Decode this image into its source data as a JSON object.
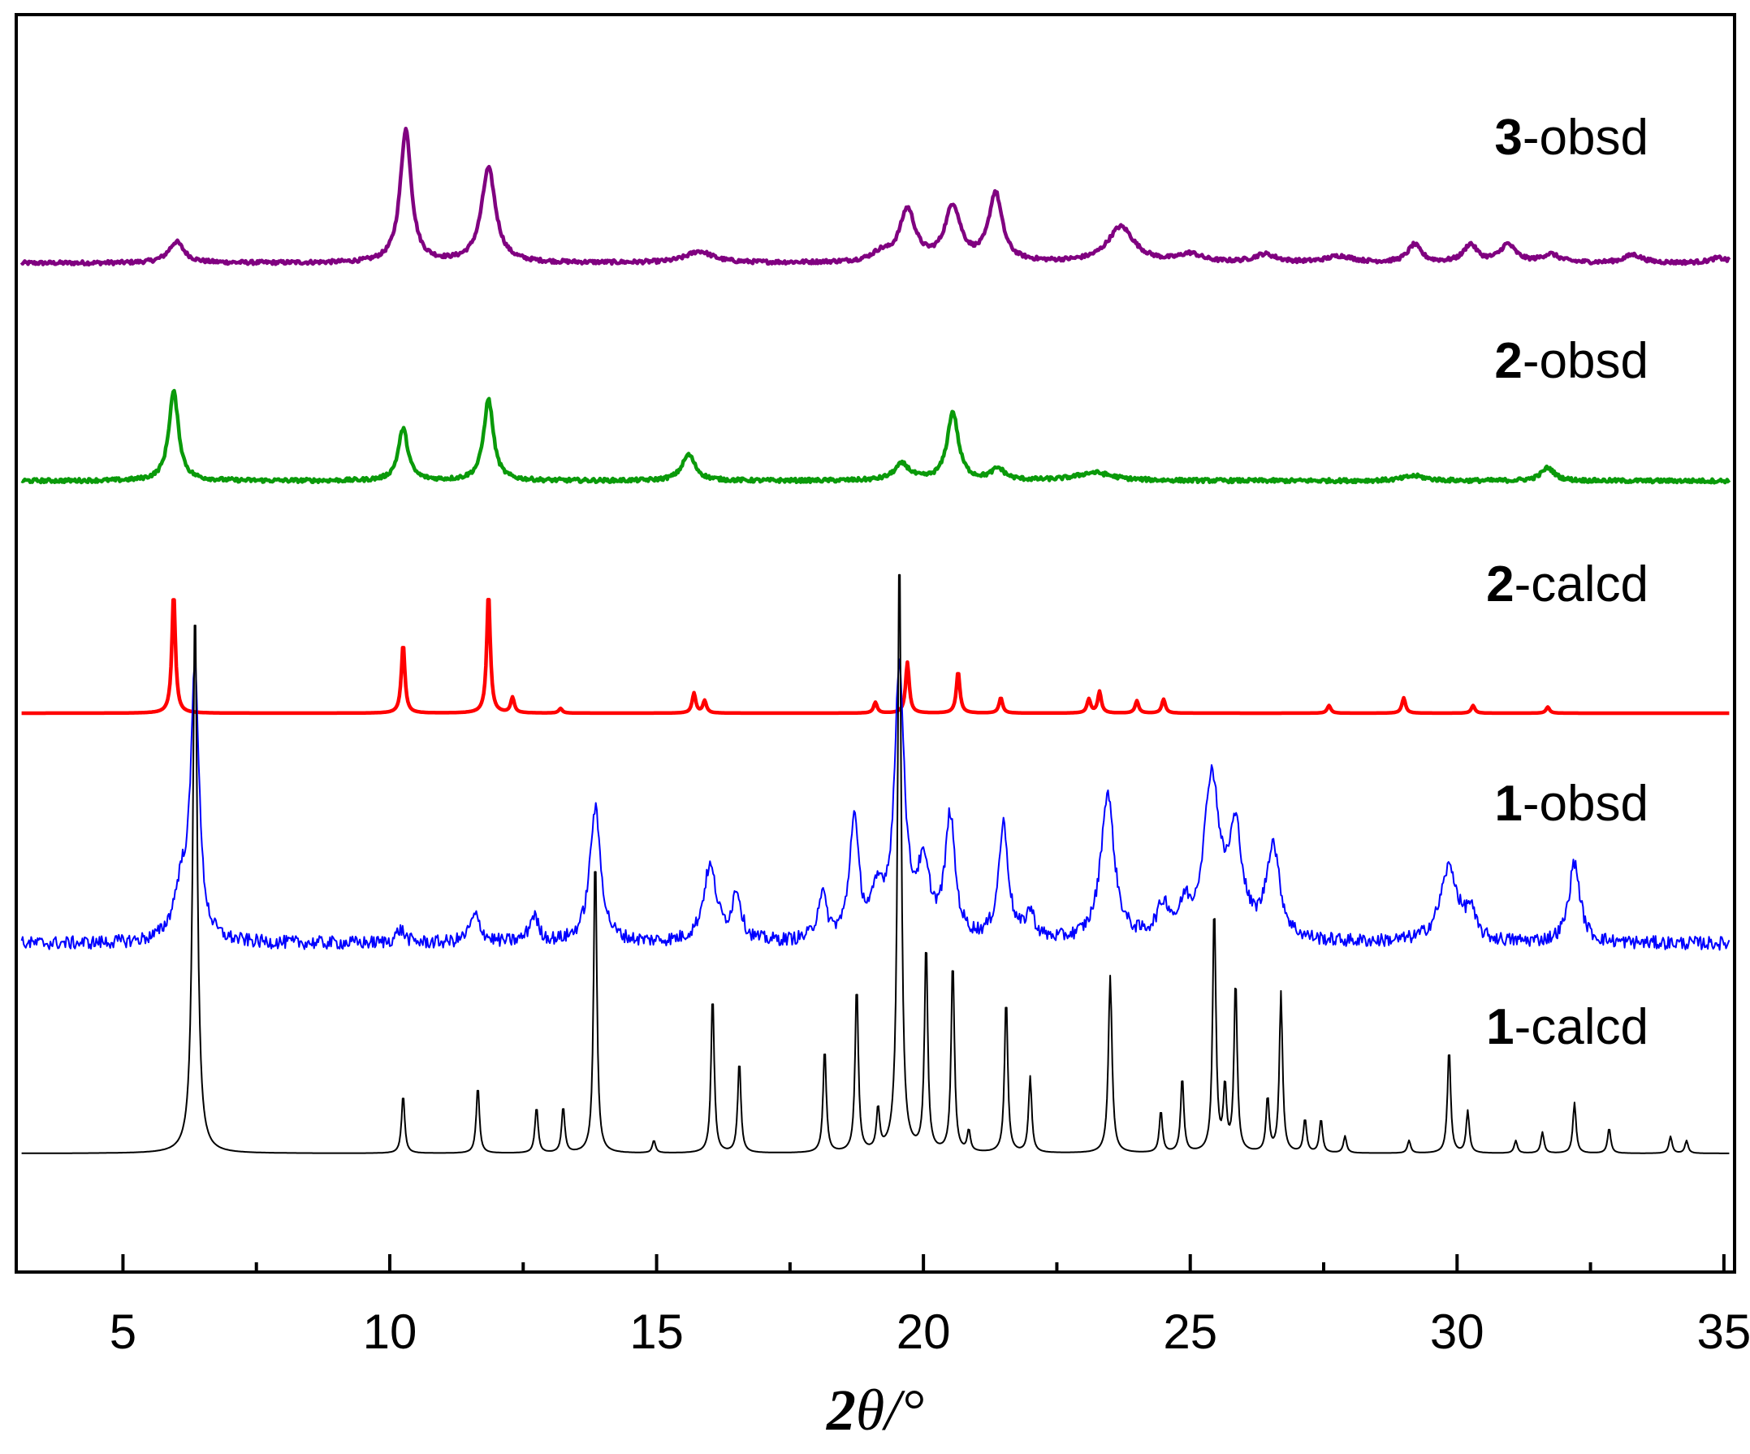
{
  "chart_data": {
    "type": "line",
    "xlabel": "2θ/°",
    "xlabel_parts": {
      "prefix": "2",
      "italic": "θ",
      "suffix": "/°"
    },
    "xlim": [
      3,
      35.2
    ],
    "x_ticks": [
      5,
      10,
      15,
      20,
      25,
      30,
      35
    ],
    "y_ticks_shown": false,
    "legend": "inline labels at right",
    "series": [
      {
        "name": "3-obsd",
        "label_num": "3",
        "label_text": "-obsd",
        "color": "#800080",
        "stroke": "thick",
        "offset": 4,
        "baseline": 0.03,
        "noise": 0.012,
        "peaks": [
          [
            6.0,
            0.13,
            0.35
          ],
          [
            10.3,
            0.82,
            0.25
          ],
          [
            11.85,
            0.58,
            0.32
          ],
          [
            15.8,
            0.07,
            0.6
          ],
          [
            19.2,
            0.05,
            0.4
          ],
          [
            19.7,
            0.32,
            0.35
          ],
          [
            20.55,
            0.34,
            0.35
          ],
          [
            21.35,
            0.42,
            0.3
          ],
          [
            23.7,
            0.22,
            0.6
          ],
          [
            25.0,
            0.05,
            0.5
          ],
          [
            26.4,
            0.05,
            0.5
          ],
          [
            27.8,
            0.04,
            0.6
          ],
          [
            29.2,
            0.11,
            0.3
          ],
          [
            30.25,
            0.11,
            0.3
          ],
          [
            30.95,
            0.11,
            0.35
          ],
          [
            31.75,
            0.05,
            0.4
          ],
          [
            33.3,
            0.05,
            0.4
          ],
          [
            34.9,
            0.03,
            0.4
          ]
        ]
      },
      {
        "name": "2-obsd",
        "label_num": "2",
        "label_text": "-obsd",
        "color": "#0a9a0a",
        "stroke": "thick",
        "offset": 3,
        "baseline": 0.04,
        "noise": 0.012,
        "peaks": [
          [
            5.95,
            0.55,
            0.22
          ],
          [
            10.25,
            0.32,
            0.22
          ],
          [
            11.85,
            0.5,
            0.22
          ],
          [
            15.6,
            0.16,
            0.3
          ],
          [
            19.6,
            0.1,
            0.35
          ],
          [
            20.55,
            0.42,
            0.25
          ],
          [
            21.4,
            0.07,
            0.3
          ],
          [
            23.2,
            0.05,
            0.8
          ],
          [
            29.2,
            0.03,
            0.5
          ],
          [
            31.7,
            0.08,
            0.3
          ]
        ]
      },
      {
        "name": "2-calcd",
        "label_num": "2",
        "label_text": "-calcd",
        "color": "#ff0000",
        "stroke": "thick",
        "offset": 2,
        "baseline": 0,
        "noise": 0.0,
        "peaks": [
          [
            5.95,
            0.78,
            0.08
          ],
          [
            10.25,
            0.45,
            0.08
          ],
          [
            11.85,
            0.78,
            0.08
          ],
          [
            12.3,
            0.1,
            0.08
          ],
          [
            13.2,
            0.03,
            0.08
          ],
          [
            15.7,
            0.13,
            0.08
          ],
          [
            15.9,
            0.08,
            0.08
          ],
          [
            19.1,
            0.07,
            0.08
          ],
          [
            19.7,
            0.33,
            0.08
          ],
          [
            20.65,
            0.27,
            0.08
          ],
          [
            21.45,
            0.1,
            0.08
          ],
          [
            23.1,
            0.09,
            0.08
          ],
          [
            23.3,
            0.14,
            0.08
          ],
          [
            24.0,
            0.08,
            0.08
          ],
          [
            24.5,
            0.09,
            0.08
          ],
          [
            27.6,
            0.05,
            0.08
          ],
          [
            29.0,
            0.1,
            0.08
          ],
          [
            30.3,
            0.05,
            0.08
          ],
          [
            31.7,
            0.04,
            0.08
          ]
        ]
      },
      {
        "name": "1-obsd",
        "label_num": "1",
        "label_text": "-obsd",
        "color": "#0000ff",
        "stroke": "thin",
        "offset": 1,
        "baseline": 0.04,
        "noise": 0.025,
        "peaks": [
          [
            6.35,
            1.0,
            0.18
          ],
          [
            6.1,
            0.2,
            0.35
          ],
          [
            10.2,
            0.05,
            0.2
          ],
          [
            11.6,
            0.1,
            0.25
          ],
          [
            12.7,
            0.1,
            0.2
          ],
          [
            13.85,
            0.5,
            0.25
          ],
          [
            16.0,
            0.28,
            0.3
          ],
          [
            16.5,
            0.18,
            0.2
          ],
          [
            18.1,
            0.17,
            0.2
          ],
          [
            18.7,
            0.45,
            0.2
          ],
          [
            19.55,
            1.0,
            0.22
          ],
          [
            19.15,
            0.15,
            0.3
          ],
          [
            20.0,
            0.25,
            0.3
          ],
          [
            20.5,
            0.45,
            0.22
          ],
          [
            21.5,
            0.43,
            0.22
          ],
          [
            22.0,
            0.1,
            0.2
          ],
          [
            23.45,
            0.55,
            0.3
          ],
          [
            24.5,
            0.12,
            0.3
          ],
          [
            24.9,
            0.1,
            0.2
          ],
          [
            25.4,
            0.6,
            0.35
          ],
          [
            25.85,
            0.38,
            0.3
          ],
          [
            26.55,
            0.35,
            0.3
          ],
          [
            29.85,
            0.28,
            0.4
          ],
          [
            30.25,
            0.1,
            0.2
          ],
          [
            32.2,
            0.3,
            0.25
          ]
        ]
      },
      {
        "name": "1-calcd",
        "label_num": "1",
        "label_text": "-calcd",
        "color": "#000000",
        "stroke": "thin",
        "offset": 0,
        "baseline": 0,
        "noise": 0.0,
        "peaks": [
          [
            6.35,
            1.3,
            0.1
          ],
          [
            10.25,
            0.14,
            0.07
          ],
          [
            11.65,
            0.16,
            0.07
          ],
          [
            12.75,
            0.11,
            0.07
          ],
          [
            13.25,
            0.11,
            0.07
          ],
          [
            13.85,
            0.72,
            0.07
          ],
          [
            14.95,
            0.03,
            0.07
          ],
          [
            16.05,
            0.38,
            0.07
          ],
          [
            16.55,
            0.22,
            0.07
          ],
          [
            18.15,
            0.25,
            0.07
          ],
          [
            18.75,
            0.4,
            0.07
          ],
          [
            19.15,
            0.1,
            0.07
          ],
          [
            19.55,
            1.45,
            0.08
          ],
          [
            20.05,
            0.5,
            0.07
          ],
          [
            20.55,
            0.46,
            0.07
          ],
          [
            20.85,
            0.05,
            0.07
          ],
          [
            21.55,
            0.37,
            0.07
          ],
          [
            22.0,
            0.18,
            0.07
          ],
          [
            23.5,
            0.42,
            0.08
          ],
          [
            24.45,
            0.1,
            0.07
          ],
          [
            24.85,
            0.18,
            0.07
          ],
          [
            25.45,
            0.59,
            0.07
          ],
          [
            25.65,
            0.15,
            0.07
          ],
          [
            25.85,
            0.41,
            0.07
          ],
          [
            26.45,
            0.13,
            0.07
          ],
          [
            26.7,
            0.38,
            0.07
          ],
          [
            27.15,
            0.08,
            0.07
          ],
          [
            27.45,
            0.08,
            0.07
          ],
          [
            27.9,
            0.04,
            0.07
          ],
          [
            29.1,
            0.03,
            0.07
          ],
          [
            29.85,
            0.25,
            0.07
          ],
          [
            30.2,
            0.1,
            0.07
          ],
          [
            31.1,
            0.03,
            0.07
          ],
          [
            31.6,
            0.05,
            0.07
          ],
          [
            32.2,
            0.12,
            0.07
          ],
          [
            32.85,
            0.06,
            0.07
          ],
          [
            34.0,
            0.04,
            0.07
          ],
          [
            34.3,
            0.03,
            0.07
          ]
        ]
      }
    ]
  }
}
